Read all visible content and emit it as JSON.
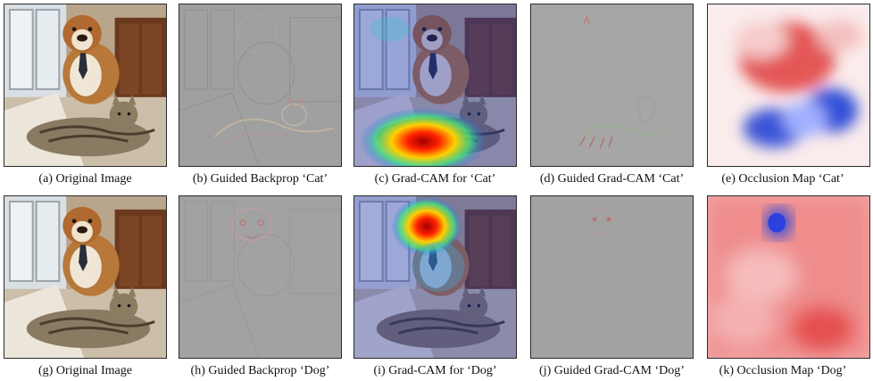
{
  "figure": {
    "rows": [
      {
        "target": "Cat",
        "panels": [
          {
            "kind": "photo",
            "caption": "(a) Original Image"
          },
          {
            "kind": "guided-backprop",
            "caption": "(b) Guided Backprop ‘Cat’"
          },
          {
            "kind": "gradcam",
            "caption": "(c) Grad-CAM for ‘Cat’"
          },
          {
            "kind": "guided-gradcam",
            "caption": "(d) Guided Grad-CAM ‘Cat’"
          },
          {
            "kind": "occlusion",
            "caption": "(e) Occlusion Map ‘Cat’"
          }
        ]
      },
      {
        "target": "Dog",
        "panels": [
          {
            "kind": "photo",
            "caption": "(g) Original Image"
          },
          {
            "kind": "guided-backprop",
            "caption": "(h) Guided Backprop ‘Dog’"
          },
          {
            "kind": "gradcam",
            "caption": "(i) Grad-CAM for ‘Dog’"
          },
          {
            "kind": "guided-gradcam",
            "caption": "(j) Guided Grad-CAM ‘Dog’"
          },
          {
            "kind": "occlusion",
            "caption": "(k) Occlusion Map ‘Dog’"
          }
        ]
      }
    ]
  },
  "colors": {
    "guided_gray": "#9c9c9c",
    "heat_hot": "#d01010",
    "heat_cold": "#2a40d0",
    "occlusion_red": "#e45050",
    "occlusion_blue": "#3050d8"
  }
}
